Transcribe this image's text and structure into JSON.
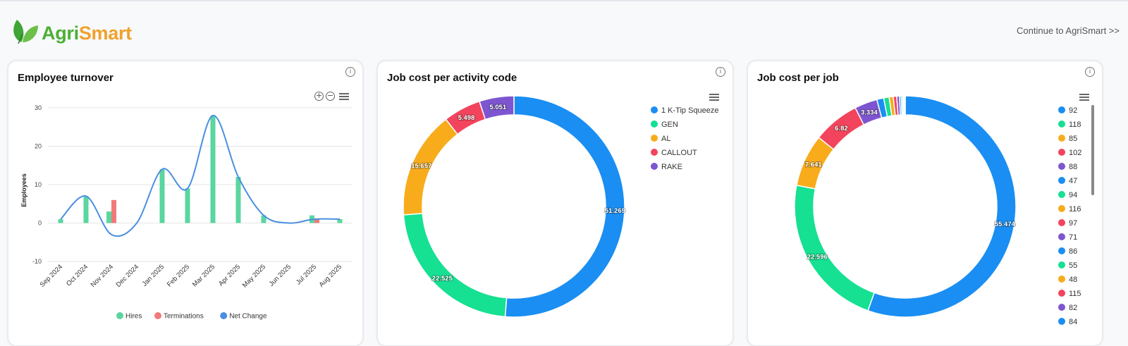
{
  "header": {
    "logo_agri": "Agri",
    "logo_smart": "Smart",
    "continue_label": "Continue to AgriSmart >>"
  },
  "cards": {
    "turnover": {
      "title": "Employee turnover"
    },
    "activity": {
      "title": "Job cost per activity code"
    },
    "job": {
      "title": "Job cost per job"
    }
  },
  "chart_data": [
    {
      "type": "bar",
      "title": "Employee turnover",
      "ylabel": "Employees",
      "xlabel": "",
      "ylim": [
        -10,
        30
      ],
      "yticks": [
        30,
        20,
        10,
        0,
        -10
      ],
      "categories": [
        "Sep 2024",
        "Oct 2024",
        "Nov 2024",
        "Dec 2024",
        "Jan 2025",
        "Feb 2025",
        "Mar 2025",
        "Apr 2025",
        "May 2025",
        "Jun 2025",
        "Jul 2025",
        "Aug 2025"
      ],
      "series": [
        {
          "name": "Hires",
          "type": "bar",
          "color": "#5ad6a0",
          "values": [
            1,
            7,
            3,
            0,
            14,
            9,
            28,
            12,
            2,
            0,
            2,
            1
          ]
        },
        {
          "name": "Terminations",
          "type": "bar",
          "color": "#f07a78",
          "values": [
            0,
            0,
            6,
            0,
            0,
            0,
            0,
            0,
            0,
            0,
            1,
            0
          ]
        },
        {
          "name": "Net Change",
          "type": "line",
          "color": "#4a8fe0",
          "values": [
            1,
            7,
            -3,
            0,
            14,
            9,
            28,
            12,
            2,
            0,
            1,
            1
          ]
        }
      ],
      "legend": "bottom",
      "grid": true
    },
    {
      "type": "pie",
      "title": "Job cost per activity code",
      "donut": true,
      "legend": "right",
      "labels": [
        "1 K-Tip Squeeze",
        "GEN",
        "AL",
        "CALLOUT",
        "RAKE"
      ],
      "values": [
        51.269,
        22.525,
        15.657,
        5.498,
        5.051
      ],
      "colors": [
        "#1a8ef2",
        "#16e092",
        "#f8ac1c",
        "#f2445c",
        "#7d55d0"
      ],
      "label_texts": [
        "51.269",
        "22.525",
        "15.657",
        "5.498",
        "5.051"
      ]
    },
    {
      "type": "pie",
      "title": "Job cost per job",
      "donut": true,
      "legend": "right",
      "labels": [
        "92",
        "118",
        "85",
        "102",
        "88",
        "47",
        "94",
        "116",
        "97",
        "71",
        "86",
        "55",
        "48",
        "115",
        "82",
        "84"
      ],
      "values": [
        55.474,
        22.596,
        7.641,
        6.82,
        3.334,
        1.0,
        0.8,
        0.6,
        0.5,
        0.4,
        0.25,
        0.2,
        0.15,
        0.1,
        0.08,
        0.05
      ],
      "colors": [
        "#1a8ef2",
        "#16e092",
        "#f8ac1c",
        "#f2445c",
        "#7d55d0",
        "#1a8ef2",
        "#16e092",
        "#f8ac1c",
        "#f2445c",
        "#7d55d0",
        "#1a8ef2",
        "#16e092",
        "#f8ac1c",
        "#f2445c",
        "#7d55d0",
        "#1a8ef2"
      ],
      "label_texts": [
        "55.474",
        "22.596",
        "7.641",
        "6.82",
        "3.334"
      ]
    }
  ]
}
